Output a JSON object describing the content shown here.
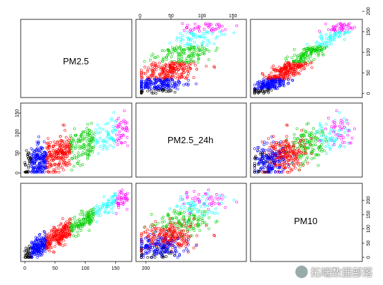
{
  "chart_data": {
    "type": "scatter",
    "variables": [
      "PM2.5",
      "PM2.5_24h",
      "PM10"
    ],
    "axis_ranges": {
      "PM2.5": [
        0,
        170
      ],
      "PM2.5_24h": [
        0,
        165
      ],
      "PM10": [
        0,
        245
      ]
    },
    "axis_ticks": {
      "top": {
        "panel_col": 1,
        "var": "PM2.5",
        "ticks": [
          0,
          50,
          100,
          150
        ],
        "labels": [
          "0",
          "50",
          "100",
          "150"
        ]
      },
      "left": {
        "panel_row": 1,
        "var": "PM2.5",
        "ticks": [
          0,
          50,
          100,
          150
        ],
        "labels": [
          "0",
          "50",
          "100",
          "150"
        ]
      },
      "bottom": {
        "panel_col": 0,
        "var": "PM2.5_24h",
        "ticks": [
          0,
          50,
          100,
          150,
          200
        ],
        "labels": [
          "0",
          "50",
          "100",
          "150",
          "200"
        ]
      },
      "right_top": {
        "panel_row": 0,
        "var": "PM10",
        "ticks": [
          0,
          50,
          100,
          150,
          200
        ],
        "labels": [
          "0",
          "50",
          "100",
          "150",
          "200"
        ]
      },
      "right_bottom": {
        "panel_row": 2,
        "var": "PM10",
        "ticks": [
          0,
          50,
          100,
          150,
          200
        ],
        "labels": [
          "0",
          "50",
          "100",
          "150",
          "200"
        ]
      }
    },
    "color_classes": [
      {
        "color": "#000000",
        "range": [
          0,
          10
        ]
      },
      {
        "color": "#0000ff",
        "range": [
          10,
          35
        ]
      },
      {
        "color": "#ff0000",
        "range": [
          35,
          75
        ]
      },
      {
        "color": "#00cc00",
        "range": [
          75,
          115
        ]
      },
      {
        "color": "#00ffff",
        "range": [
          115,
          150
        ]
      },
      {
        "color": "#ff00ff",
        "range": [
          150,
          250
        ]
      }
    ],
    "grid": false,
    "legend": "none",
    "marker": "open-circle"
  },
  "watermark": {
    "text": "拓端数据部落"
  }
}
